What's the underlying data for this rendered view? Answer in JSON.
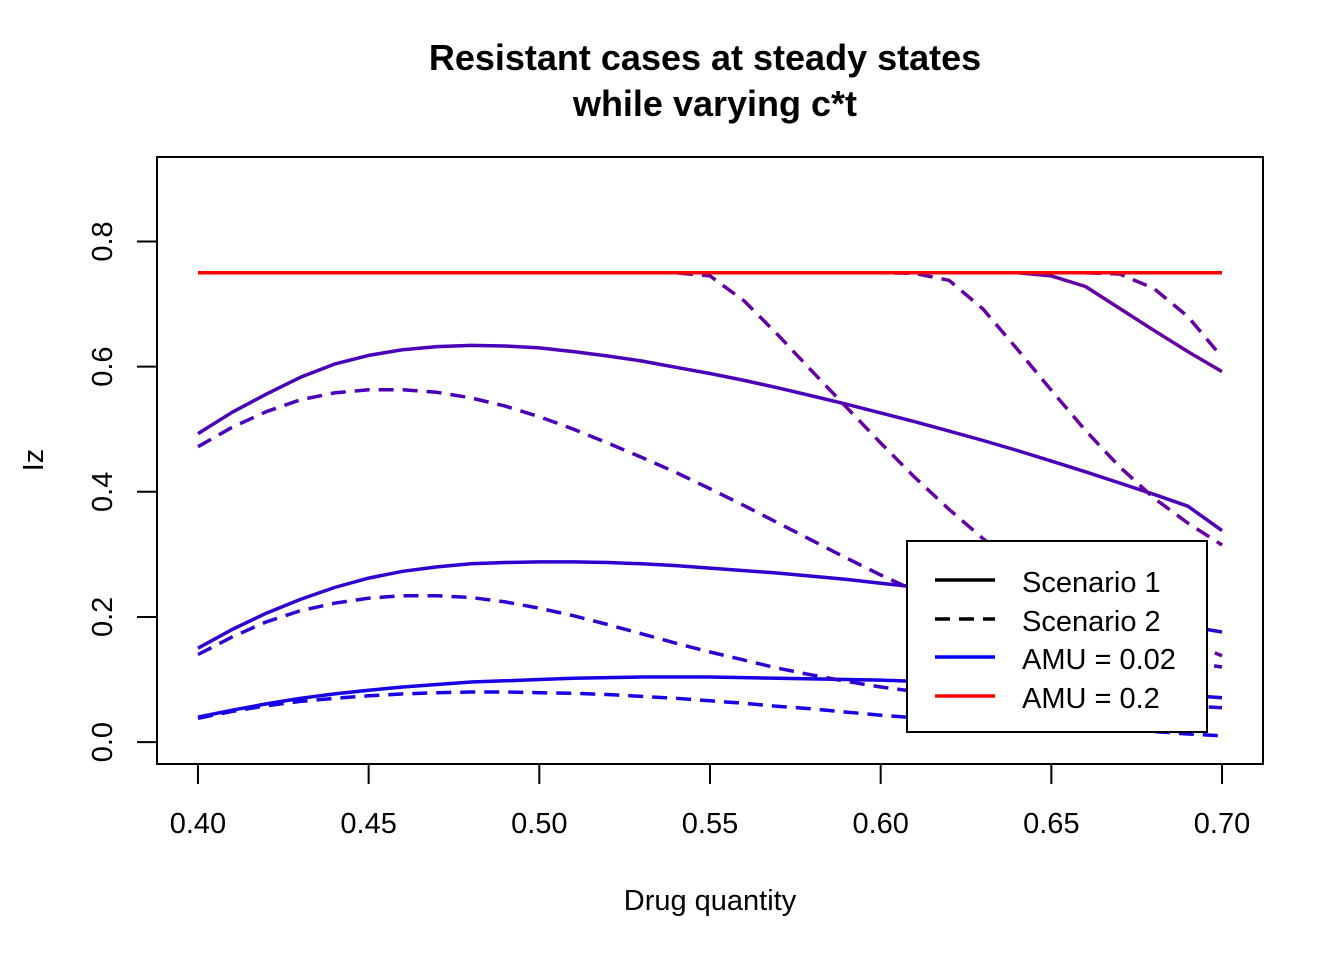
{
  "chart_data": {
    "type": "line",
    "title_lines": [
      "Resistant cases at steady states",
      "while varying c*t"
    ],
    "xlabel": "Drug quantity",
    "ylabel": "Iz",
    "xlim": [
      0.388,
      0.712
    ],
    "ylim": [
      -0.035,
      0.935
    ],
    "x_ticks": [
      0.4,
      0.45,
      0.5,
      0.55,
      0.6,
      0.65,
      0.7
    ],
    "x_tick_labels": [
      "0.40",
      "0.45",
      "0.50",
      "0.55",
      "0.60",
      "0.65",
      "0.70"
    ],
    "y_ticks": [
      0.0,
      0.2,
      0.4,
      0.6,
      0.8
    ],
    "y_tick_labels": [
      "0.0",
      "0.2",
      "0.4",
      "0.6",
      "0.8"
    ],
    "grid": false,
    "legend_position": "bottom-right",
    "legend": [
      {
        "label": "Scenario 1",
        "color": "#000000",
        "dash": "solid"
      },
      {
        "label": "Scenario 2",
        "color": "#000000",
        "dash": "dashed"
      },
      {
        "label": "AMU = 0.02",
        "color": "#0000FF",
        "dash": "solid"
      },
      {
        "label": "AMU = 0.2",
        "color": "#FF0000",
        "dash": "solid"
      }
    ],
    "x": [
      0.4,
      0.41,
      0.42,
      0.43,
      0.44,
      0.45,
      0.46,
      0.47,
      0.48,
      0.49,
      0.5,
      0.51,
      0.52,
      0.53,
      0.54,
      0.55,
      0.56,
      0.57,
      0.58,
      0.59,
      0.6,
      0.61,
      0.62,
      0.63,
      0.64,
      0.65,
      0.66,
      0.67,
      0.68,
      0.69,
      0.7
    ],
    "series": [
      {
        "color": "#1800E6",
        "dash": "solid",
        "values": [
          0.04,
          0.051,
          0.061,
          0.07,
          0.077,
          0.083,
          0.088,
          0.092,
          0.096,
          0.098,
          0.1,
          0.102,
          0.103,
          0.104,
          0.104,
          0.104,
          0.103,
          0.102,
          0.101,
          0.1,
          0.099,
          0.097,
          0.095,
          0.093,
          0.09,
          0.088,
          0.085,
          0.082,
          0.078,
          0.075,
          0.071
        ]
      },
      {
        "color": "#1800E6",
        "dash": "dashed",
        "values": [
          0.038,
          0.049,
          0.058,
          0.065,
          0.07,
          0.074,
          0.077,
          0.079,
          0.08,
          0.08,
          0.079,
          0.078,
          0.076,
          0.073,
          0.07,
          0.066,
          0.062,
          0.057,
          0.053,
          0.048,
          0.043,
          0.039,
          0.036,
          0.033,
          0.03,
          0.027,
          0.024,
          0.021,
          0.017,
          0.013,
          0.01
        ]
      },
      {
        "color": "#3000CF",
        "dash": "solid",
        "values": [
          0.15,
          0.18,
          0.206,
          0.228,
          0.247,
          0.262,
          0.273,
          0.28,
          0.285,
          0.287,
          0.288,
          0.288,
          0.287,
          0.285,
          0.282,
          0.278,
          0.274,
          0.27,
          0.265,
          0.26,
          0.254,
          0.248,
          0.241,
          0.234,
          0.226,
          0.218,
          0.21,
          0.202,
          0.194,
          0.185,
          0.176
        ]
      },
      {
        "color": "#3000CF",
        "dash": "dashed",
        "values": [
          0.14,
          0.168,
          0.192,
          0.21,
          0.222,
          0.23,
          0.234,
          0.234,
          0.231,
          0.224,
          0.214,
          0.202,
          0.188,
          0.173,
          0.158,
          0.144,
          0.131,
          0.118,
          0.107,
          0.097,
          0.088,
          0.081,
          0.076,
          0.072,
          0.069,
          0.067,
          0.065,
          0.063,
          0.061,
          0.058,
          0.055
        ]
      },
      {
        "color": "#4A00B8",
        "dash": "solid",
        "values": [
          0.493,
          0.527,
          0.556,
          0.583,
          0.604,
          0.618,
          0.627,
          0.632,
          0.634,
          0.633,
          0.63,
          0.624,
          0.617,
          0.609,
          0.599,
          0.589,
          0.578,
          0.566,
          0.553,
          0.54,
          0.526,
          0.512,
          0.497,
          0.482,
          0.466,
          0.449,
          0.432,
          0.414,
          0.396,
          0.377,
          0.338
        ]
      },
      {
        "color": "#4A00B8",
        "dash": "dashed",
        "values": [
          0.472,
          0.503,
          0.528,
          0.547,
          0.558,
          0.563,
          0.563,
          0.559,
          0.55,
          0.537,
          0.52,
          0.5,
          0.478,
          0.455,
          0.431,
          0.405,
          0.378,
          0.35,
          0.322,
          0.294,
          0.267,
          0.242,
          0.219,
          0.198,
          0.18,
          0.165,
          0.153,
          0.143,
          0.135,
          0.128,
          0.12
        ]
      },
      {
        "color": "#6600A0",
        "dash": "dashed",
        "values": [
          0.75,
          0.75,
          0.75,
          0.75,
          0.75,
          0.75,
          0.75,
          0.75,
          0.75,
          0.75,
          0.75,
          0.75,
          0.75,
          0.75,
          0.75,
          0.745,
          0.705,
          0.65,
          0.592,
          0.535,
          0.478,
          0.423,
          0.372,
          0.325,
          0.283,
          0.248,
          0.22,
          0.198,
          0.182,
          0.16,
          0.138
        ]
      },
      {
        "color": "#6600A0",
        "dash": "dashed",
        "values": [
          0.75,
          0.75,
          0.75,
          0.75,
          0.75,
          0.75,
          0.75,
          0.75,
          0.75,
          0.75,
          0.75,
          0.75,
          0.75,
          0.75,
          0.75,
          0.75,
          0.75,
          0.75,
          0.75,
          0.75,
          0.75,
          0.749,
          0.738,
          0.692,
          0.628,
          0.562,
          0.498,
          0.44,
          0.39,
          0.35,
          0.315
        ]
      },
      {
        "color": "#6600A0",
        "dash": "solid",
        "values": [
          0.75,
          0.75,
          0.75,
          0.75,
          0.75,
          0.75,
          0.75,
          0.75,
          0.75,
          0.75,
          0.75,
          0.75,
          0.75,
          0.75,
          0.75,
          0.75,
          0.75,
          0.75,
          0.75,
          0.75,
          0.75,
          0.75,
          0.75,
          0.75,
          0.75,
          0.745,
          0.728,
          0.693,
          0.658,
          0.624,
          0.592
        ]
      },
      {
        "color": "#6600A0",
        "dash": "dashed",
        "values": [
          0.75,
          0.75,
          0.75,
          0.75,
          0.75,
          0.75,
          0.75,
          0.75,
          0.75,
          0.75,
          0.75,
          0.75,
          0.75,
          0.75,
          0.75,
          0.75,
          0.75,
          0.75,
          0.75,
          0.75,
          0.75,
          0.75,
          0.75,
          0.75,
          0.75,
          0.75,
          0.75,
          0.748,
          0.725,
          0.68,
          0.615
        ]
      },
      {
        "color": "#FF0000",
        "dash": "solid",
        "values": [
          0.75,
          0.75,
          0.75,
          0.75,
          0.75,
          0.75,
          0.75,
          0.75,
          0.75,
          0.75,
          0.75,
          0.75,
          0.75,
          0.75,
          0.75,
          0.75,
          0.75,
          0.75,
          0.75,
          0.75,
          0.75,
          0.75,
          0.75,
          0.75,
          0.75,
          0.75,
          0.75,
          0.75,
          0.75,
          0.75,
          0.75
        ]
      }
    ]
  }
}
